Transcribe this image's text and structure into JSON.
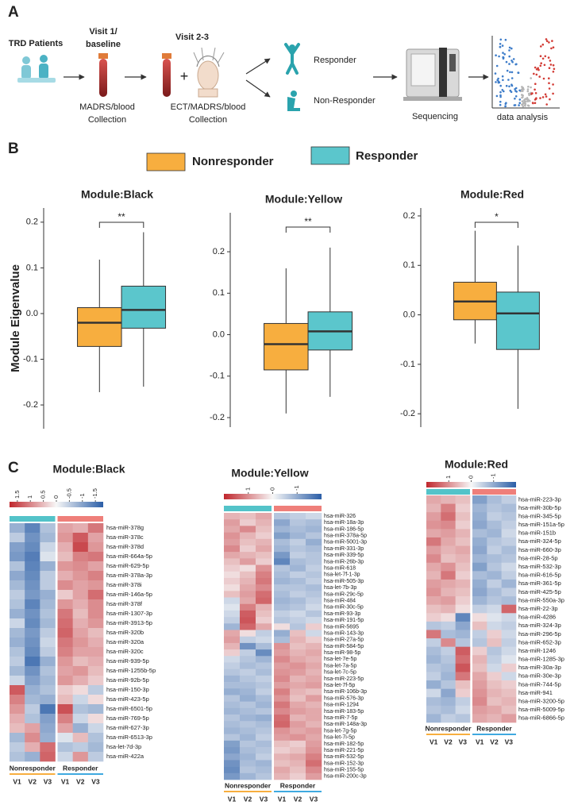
{
  "panel_labels": [
    "A",
    "B",
    "C"
  ],
  "panel_a": {
    "trd": "TRD Patients",
    "visit1": [
      "Visit 1/",
      "baseline"
    ],
    "collection1": [
      "MADRS/blood",
      "Collection"
    ],
    "visit2": "Visit 2-3",
    "collection2": [
      "ECT/MADRS/blood",
      "Collection"
    ],
    "responder": "Responder",
    "nonresponder": "Non-Responder",
    "sequencing": "Sequencing",
    "analysis": "data analysis"
  },
  "legend": [
    {
      "name": "Nonresponder",
      "color": "#f7ae3f"
    },
    {
      "name": "Responder",
      "color": "#5bc6cc"
    }
  ],
  "chart_data": [
    {
      "type": "box",
      "title": "Module:Black",
      "ylabel": "Module Eigenvalue",
      "ylim": [
        -0.252,
        0.231
      ],
      "yticks": [
        -0.2,
        -0.1,
        {
          "value": 0,
          "label": "0.0"
        },
        0.1,
        0.2
      ],
      "significance": "**",
      "boxes": [
        {
          "low": -0.172,
          "q1": -0.072,
          "median": -0.02,
          "q3": 0.013,
          "high": 0.118
        },
        {
          "low": -0.16,
          "q1": -0.032,
          "median": 0.008,
          "q3": 0.06,
          "high": 0.178
        }
      ]
    },
    {
      "type": "box",
      "title": "Module:Yellow",
      "ylim": [
        -0.223,
        0.294
      ],
      "yticks": [
        -0.2,
        -0.1,
        {
          "value": 0,
          "label": "0.0"
        },
        0.1,
        0.2
      ],
      "significance": "**",
      "boxes": [
        {
          "low": -0.19,
          "q1": -0.085,
          "median": -0.023,
          "q3": 0.027,
          "high": 0.16
        },
        {
          "low": -0.15,
          "q1": -0.037,
          "median": 0.008,
          "q3": 0.055,
          "high": 0.21
        }
      ]
    },
    {
      "type": "box",
      "title": "Module:Red",
      "ylim": [
        -0.227,
        0.216
      ],
      "yticks": [
        -0.2,
        -0.1,
        {
          "value": 0,
          "label": "0.0"
        },
        0.1,
        0.2
      ],
      "significance": "*",
      "boxes": [
        {
          "low": -0.058,
          "q1": -0.01,
          "median": 0.027,
          "q3": 0.066,
          "high": 0.17
        },
        {
          "low": -0.19,
          "q1": -0.07,
          "median": 0.003,
          "q3": 0.046,
          "high": 0.14
        }
      ]
    },
    {
      "type": "heatmap",
      "title": "Module:Black",
      "zlim": [
        -1.8,
        1.8
      ],
      "zticks": [
        1.5,
        1,
        0.5,
        0,
        -0.5,
        -1,
        -1.5
      ],
      "colors": [
        "#c0272d",
        "#f7f7f7",
        "#2b5ea7"
      ],
      "annotation_colors": [
        "#53c3c9",
        "#ef7f7a"
      ],
      "groups": [
        {
          "name": "Nonresponder",
          "color": "#f7ae3f"
        },
        {
          "name": "Responder",
          "color": "#3fa9e0"
        }
      ],
      "columns": [
        "V1",
        "V2",
        "V3",
        "V1",
        "V2",
        "V3"
      ],
      "rows": [
        "hsa-miR-378g",
        "hsa-miR-378c",
        "hsa-miR-378d",
        "hsa-miR-664a-5p",
        "hsa-miR-629-5p",
        "hsa-miR-378a-3p",
        "hsa-miR-378i",
        "hsa-miR-146a-5p",
        "hsa-miR-378f",
        "hsa-miR-1307-3p",
        "hsa-miR-3913-5p",
        "hsa-miR-320b",
        "hsa-miR-320a",
        "hsa-miR-320c",
        "hsa-miR-939-5p",
        "hsa-miR-1255b-5p",
        "hsa-miR-92b-5p",
        "hsa-miR-150-3p",
        "hsa-miR-423-5p",
        "hsa-miR-6501-5p",
        "hsa-miR-769-5p",
        "hsa-miR-627-3p",
        "hsa-miR-6513-3p",
        "hsa-let-7d-3p",
        "hsa-miR-422a"
      ],
      "values": [
        [
          -0.6,
          -1.2,
          -0.4,
          0.5,
          0.4,
          0.9
        ],
        [
          -0.3,
          -1.0,
          -0.5,
          0.6,
          1.2,
          0.5
        ],
        [
          -0.8,
          -1.1,
          -0.2,
          0.4,
          1.4,
          0.6
        ],
        [
          -0.9,
          -1.3,
          -0.1,
          0.3,
          0.8,
          0.9
        ],
        [
          -0.4,
          -1.2,
          -0.6,
          0.6,
          0.7,
          0.5
        ],
        [
          -0.7,
          -1.1,
          -0.3,
          0.4,
          0.6,
          0.8
        ],
        [
          -0.5,
          -1.0,
          -0.3,
          0.7,
          0.5,
          0.6
        ],
        [
          -0.3,
          -0.9,
          -0.6,
          0.2,
          0.5,
          1.0
        ],
        [
          -0.4,
          -1.2,
          -0.5,
          0.6,
          0.4,
          0.7
        ],
        [
          -0.6,
          -1.0,
          -0.4,
          0.9,
          0.3,
          0.7
        ],
        [
          -0.2,
          -1.1,
          -0.5,
          1.0,
          0.4,
          0.6
        ],
        [
          -0.5,
          -0.9,
          -0.3,
          1.1,
          0.5,
          0.3
        ],
        [
          -0.6,
          -1.0,
          -0.2,
          0.9,
          0.6,
          0.4
        ],
        [
          -0.4,
          -1.1,
          -0.3,
          0.8,
          0.5,
          0.5
        ],
        [
          -0.3,
          -1.4,
          -0.6,
          0.6,
          0.3,
          0.4
        ],
        [
          -0.5,
          -1.0,
          -0.4,
          0.5,
          0.6,
          0.3
        ],
        [
          -0.2,
          -0.8,
          -0.5,
          0.6,
          0.4,
          0.2
        ],
        [
          1.2,
          -0.6,
          -0.4,
          0.2,
          0.1,
          -0.3
        ],
        [
          0.8,
          -0.5,
          -0.6,
          0.3,
          -0.2,
          0.1
        ],
        [
          0.6,
          -0.3,
          -1.4,
          1.3,
          -0.4,
          -0.5
        ],
        [
          0.4,
          -0.4,
          -0.8,
          0.8,
          -0.2,
          0.1
        ],
        [
          0.3,
          0.5,
          -0.7,
          0.5,
          -0.6,
          -0.2
        ],
        [
          -0.5,
          0.7,
          -0.6,
          -0.1,
          0.3,
          -0.4
        ],
        [
          -0.3,
          0.4,
          1.0,
          -0.4,
          -0.3,
          -0.5
        ],
        [
          -0.4,
          -0.6,
          1.1,
          -0.2,
          0.6,
          -0.3
        ]
      ]
    },
    {
      "type": "heatmap",
      "title": "Module:Yellow",
      "zlim": [
        -2,
        2
      ],
      "zticks": [
        1,
        0,
        -1
      ],
      "colors": [
        "#c0272d",
        "#f7f7f7",
        "#2b5ea7"
      ],
      "annotation_colors": [
        "#53c3c9",
        "#ef7f7a"
      ],
      "groups": [
        {
          "name": "Nonresponder",
          "color": "#f7ae3f"
        },
        {
          "name": "Responder",
          "color": "#3fa9e0"
        }
      ],
      "columns": [
        "V1",
        "V2",
        "V3",
        "V1",
        "V2",
        "V3"
      ],
      "rows": [
        "hsa-miR-326",
        "hsa-miR-18a-3p",
        "hsa-miR-186-5p",
        "hsa-miR-378a-5p",
        "hsa-miR-5001-3p",
        "hsa-miR-331-3p",
        "hsa-miR-339-5p",
        "hsa-miR-26b-3p",
        "hsa-miR-618",
        "hsa-let-7f-1-3p",
        "hsa-miR-505-3p",
        "hsa-let-7b-3p",
        "hsa-miR-29c-5p",
        "hsa-miR-484",
        "hsa-miR-30c-5p",
        "hsa-miR-93-3p",
        "hsa-miR-191-5p",
        "hsa-miR-5695",
        "hsa-miR-143-3p",
        "hsa-miR-27a-5p",
        "hsa-miR-584-5p",
        "hsa-miR-98-5p",
        "hsa-let-7e-5p",
        "hsa-let-7a-5p",
        "hsa-let-7c-5p",
        "hsa-miR-223-5p",
        "hsa-let-7f-5p",
        "hsa-miR-106b-3p",
        "hsa-miR-576-3p",
        "hsa-miR-1294",
        "hsa-miR-183-5p",
        "hsa-miR-7-5p",
        "hsa-miR-148a-3p",
        "hsa-let-7g-5p",
        "hsa-let-7i-5p",
        "hsa-miR-182-5p",
        "hsa-miR-221-5p",
        "hsa-miR-532-5p",
        "hsa-miR-152-3p",
        "hsa-miR-155-5p",
        "hsa-miR-200c-3p"
      ],
      "values": [
        [
          0.4,
          0.3,
          0.5,
          -0.4,
          -0.3,
          -0.2
        ],
        [
          0.6,
          0.2,
          0.4,
          -0.8,
          -0.4,
          -0.5
        ],
        [
          0.5,
          0.8,
          0.3,
          -0.6,
          -0.5,
          -0.6
        ],
        [
          0.7,
          0.4,
          0.2,
          -0.9,
          -0.6,
          -0.4
        ],
        [
          0.6,
          0.3,
          0.4,
          -0.5,
          -0.3,
          -0.7
        ],
        [
          0.8,
          0.2,
          0.5,
          -0.6,
          -0.4,
          -0.5
        ],
        [
          0.5,
          0.4,
          0.3,
          -1.0,
          -0.3,
          -0.4
        ],
        [
          0.3,
          0.6,
          0.2,
          -1.3,
          -0.5,
          -0.4
        ],
        [
          0.2,
          0.1,
          0.7,
          -0.4,
          -0.6,
          -0.3
        ],
        [
          0.1,
          0.3,
          0.9,
          -0.5,
          -0.3,
          -0.4
        ],
        [
          0.2,
          0.4,
          1.0,
          -0.6,
          -0.5,
          -0.3
        ],
        [
          0.1,
          0.5,
          0.8,
          -0.4,
          -0.4,
          -0.5
        ],
        [
          0.3,
          0.6,
          1.1,
          -0.5,
          -0.3,
          -0.4
        ],
        [
          -0.2,
          0.5,
          1.2,
          -0.6,
          -0.5,
          -0.3
        ],
        [
          -0.1,
          0.9,
          0.4,
          -0.5,
          -0.4,
          -0.2
        ],
        [
          -0.2,
          1.3,
          0.3,
          -0.3,
          -0.2,
          -0.4
        ],
        [
          -0.3,
          1.4,
          0.2,
          -0.4,
          -0.3,
          -0.2
        ],
        [
          -0.6,
          1.2,
          0.5,
          0.1,
          -0.4,
          0.2
        ],
        [
          0.5,
          0.1,
          -0.3,
          -0.7,
          0.3,
          -0.2
        ],
        [
          0.6,
          -0.3,
          -0.2,
          -0.5,
          0.4,
          0.2
        ],
        [
          0.4,
          -1.1,
          -0.5,
          0.7,
          0.3,
          0.4
        ],
        [
          0.2,
          -0.3,
          -1.2,
          0.6,
          0.4,
          0.5
        ],
        [
          -0.2,
          -0.4,
          -0.6,
          0.8,
          0.5,
          0.4
        ],
        [
          -0.3,
          -0.5,
          -0.4,
          0.6,
          0.7,
          0.5
        ],
        [
          -0.4,
          -0.3,
          -0.5,
          0.7,
          0.6,
          0.4
        ],
        [
          -0.6,
          -0.4,
          -0.3,
          0.8,
          0.4,
          0.5
        ],
        [
          -0.5,
          -0.5,
          -0.4,
          0.6,
          0.5,
          0.6
        ],
        [
          -0.7,
          -0.6,
          -0.3,
          0.9,
          0.4,
          0.3
        ],
        [
          -0.4,
          -0.7,
          -0.5,
          0.7,
          0.3,
          0.6
        ],
        [
          -0.5,
          -0.4,
          -0.6,
          1.0,
          0.5,
          0.4
        ],
        [
          -0.6,
          -0.5,
          -0.4,
          0.8,
          0.6,
          0.5
        ],
        [
          -0.4,
          -0.6,
          -0.7,
          1.1,
          0.4,
          0.5
        ],
        [
          -0.5,
          -0.4,
          -0.5,
          1.2,
          0.6,
          0.4
        ],
        [
          -0.6,
          -0.5,
          -0.4,
          0.7,
          0.5,
          0.6
        ],
        [
          -0.4,
          -0.6,
          -0.3,
          0.6,
          0.7,
          0.5
        ],
        [
          -0.9,
          -0.4,
          -0.5,
          0.3,
          0.2,
          0.6
        ],
        [
          -1.0,
          -0.5,
          -0.4,
          0.2,
          0.3,
          0.7
        ],
        [
          -0.8,
          -0.6,
          -0.3,
          0.4,
          0.5,
          0.9
        ],
        [
          -1.1,
          -0.5,
          -0.6,
          0.3,
          0.4,
          1.1
        ],
        [
          -1.2,
          -0.4,
          -0.5,
          0.5,
          0.3,
          0.8
        ],
        [
          -1.0,
          -0.6,
          -0.4,
          0.4,
          0.2,
          0.6
        ]
      ]
    },
    {
      "type": "heatmap",
      "title": "Module:Red",
      "zlim": [
        -2,
        2
      ],
      "zticks": [
        1,
        0,
        -1
      ],
      "colors": [
        "#c0272d",
        "#f7f7f7",
        "#2b5ea7"
      ],
      "annotation_colors": [
        "#53c3c9",
        "#ef7f7a"
      ],
      "groups": [
        {
          "name": "Nonresponder",
          "color": "#f7ae3f"
        },
        {
          "name": "Responder",
          "color": "#3fa9e0"
        }
      ],
      "columns": [
        "V1",
        "V2",
        "V3",
        "V1",
        "V2",
        "V3"
      ],
      "rows": [
        "hsa-miR-223-3p",
        "hsa-miR-30b-5p",
        "hsa-miR-345-5p",
        "hsa-miR-151a-5p",
        "hsa-miR-151b",
        "hsa-miR-324-5p",
        "hsa-miR-660-3p",
        "hsa-miR-28-5p",
        "hsa-miR-532-3p",
        "hsa-miR-616-5p",
        "hsa-miR-361-5p",
        "hsa-miR-425-5p",
        "hsa-miR-550a-3p",
        "hsa-miR-22-3p",
        "hsa-miR-4286",
        "hsa-miR-324-3p",
        "hsa-miR-296-5p",
        "hsa-miR-652-3p",
        "hsa-miR-1246",
        "hsa-miR-1285-3p",
        "hsa-miR-30a-3p",
        "hsa-miR-30e-3p",
        "hsa-miR-744-5p",
        "hsa-miR-941",
        "hsa-miR-3200-5p",
        "hsa-miR-5009-5p",
        "hsa-miR-6866-5p"
      ],
      "values": [
        [
          0.5,
          0.4,
          0.3,
          -0.9,
          -0.5,
          -0.3
        ],
        [
          0.4,
          0.9,
          0.2,
          -0.6,
          -0.4,
          -0.5
        ],
        [
          0.6,
          1.1,
          0.3,
          -0.7,
          -0.3,
          -0.4
        ],
        [
          0.7,
          0.8,
          0.2,
          -0.8,
          -0.5,
          -0.3
        ],
        [
          0.5,
          0.6,
          0.4,
          -0.5,
          -0.6,
          -0.2
        ],
        [
          1.0,
          0.5,
          0.3,
          -0.7,
          -0.4,
          -0.3
        ],
        [
          0.6,
          0.4,
          0.5,
          -0.8,
          -0.3,
          -0.5
        ],
        [
          0.8,
          0.3,
          0.4,
          -0.6,
          -0.5,
          -0.4
        ],
        [
          0.5,
          0.7,
          0.3,
          -0.9,
          -0.4,
          -0.2
        ],
        [
          0.4,
          1.0,
          0.2,
          -0.5,
          -0.6,
          -0.3
        ],
        [
          0.6,
          0.5,
          0.4,
          -0.7,
          -0.3,
          -0.6
        ],
        [
          0.7,
          0.4,
          0.3,
          -0.8,
          -0.5,
          -0.3
        ],
        [
          0.5,
          0.6,
          0.2,
          -0.6,
          -0.4,
          -0.5
        ],
        [
          0.3,
          0.4,
          0.1,
          -0.3,
          -0.2,
          1.2
        ],
        [
          0.2,
          0.1,
          -1.3,
          0.1,
          -0.1,
          -0.2
        ],
        [
          -0.4,
          -0.3,
          -0.8,
          0.3,
          -0.2,
          -0.3
        ],
        [
          1.0,
          -0.5,
          -0.6,
          -0.3,
          0.2,
          -0.2
        ],
        [
          -0.3,
          0.8,
          -0.4,
          -0.4,
          0.3,
          -0.3
        ],
        [
          -0.5,
          -0.3,
          1.3,
          0.2,
          -0.4,
          -0.2
        ],
        [
          -0.6,
          -0.4,
          1.1,
          0.4,
          -0.3,
          -0.1
        ],
        [
          -0.4,
          -0.5,
          1.4,
          0.3,
          -0.2,
          0.2
        ],
        [
          -0.3,
          -0.6,
          1.0,
          0.5,
          0.2,
          -0.2
        ],
        [
          -0.7,
          -0.4,
          0.3,
          0.6,
          0.3,
          0.2
        ],
        [
          -0.2,
          -0.8,
          0.2,
          0.7,
          0.4,
          0.3
        ],
        [
          -0.5,
          -0.6,
          -0.3,
          0.8,
          0.3,
          0.4
        ],
        [
          -0.4,
          -0.5,
          -0.2,
          0.6,
          0.5,
          0.3
        ],
        [
          -0.6,
          -0.3,
          -0.4,
          0.5,
          0.4,
          0.6
        ]
      ]
    }
  ]
}
